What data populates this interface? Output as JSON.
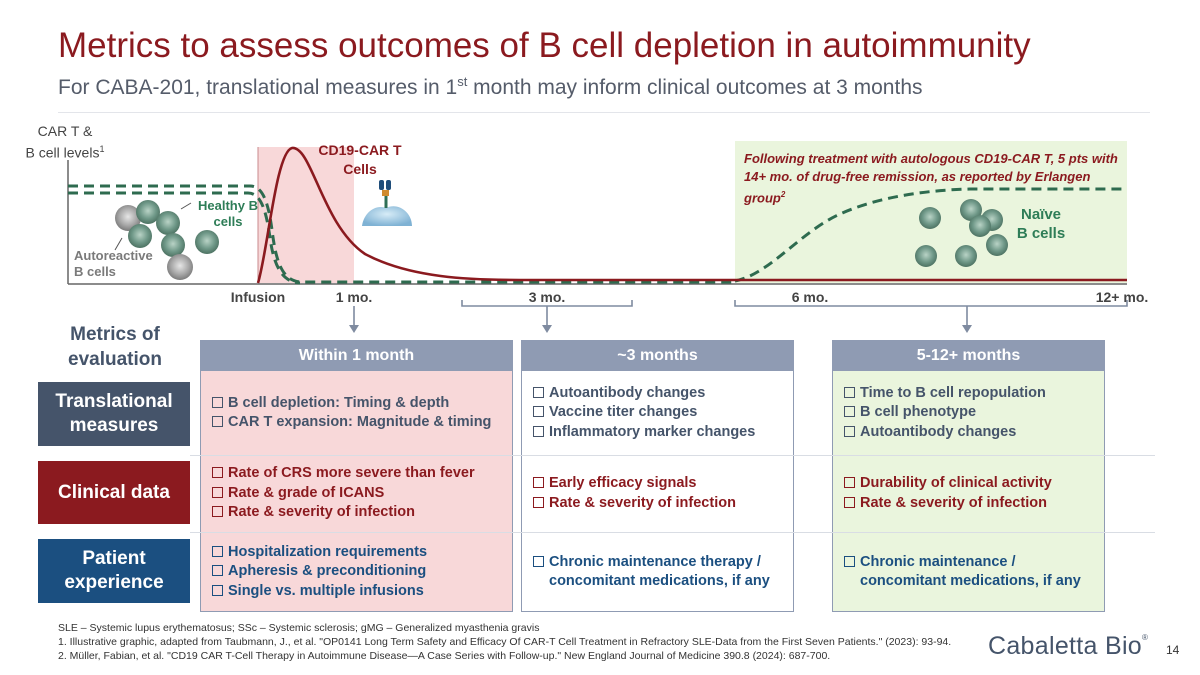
{
  "header": {
    "title": "Metrics to assess outcomes of B cell depletion in autoimmunity",
    "subtitle_pre": "For CABA-201, translational measures in 1",
    "subtitle_sup": "st",
    "subtitle_post": " month may inform clinical outcomes at 3 months"
  },
  "chart": {
    "ylabel_line1": "CAR T &",
    "ylabel_line2": "B cell levels",
    "ylabel_sup": "1",
    "cd19_line1": "CD19-CAR T",
    "cd19_line2": "Cells",
    "erlangen_note": "Following treatment with autologous CD19-CAR T, 5 pts with 14+ mo. of drug-free remission, as reported by Erlangen group",
    "erlangen_sup": "2",
    "healthy_line1": "Healthy B",
    "healthy_line2": "cells",
    "naive_line1": "Naïve",
    "naive_line2": "B cells",
    "autoreactive_line1": "Autoreactive",
    "autoreactive_line2": "B cells",
    "ticks": [
      "Infusion",
      "1 mo.",
      "3 mo.",
      "6 mo.",
      "12+ mo."
    ],
    "colors": {
      "car_t": "#8b1a1f",
      "b_cells": "#2e6b4f",
      "car_window": "#f8d8d9",
      "remission_window": "#eaf5dd"
    }
  },
  "table": {
    "metrics_line1": "Metrics of",
    "metrics_line2": "evaluation",
    "columns": [
      "Within 1 month",
      "~3 months",
      "5-12+ months"
    ],
    "rows": [
      {
        "label_line1": "Translational",
        "label_line2": "measures",
        "cells": [
          [
            "B cell depletion: Timing & depth",
            "CAR T expansion: Magnitude & timing"
          ],
          [
            "Autoantibody changes",
            "Vaccine titer changes",
            "Inflammatory marker changes"
          ],
          [
            "Time to B cell repopulation",
            "B cell phenotype",
            "Autoantibody changes"
          ]
        ]
      },
      {
        "label_line1": "Clinical data",
        "label_line2": "",
        "cells": [
          [
            "Rate of CRS more severe than fever",
            "Rate & grade of ICANS",
            "Rate & severity of infection"
          ],
          [
            "Early efficacy signals",
            "Rate & severity of infection"
          ],
          [
            "Durability of clinical activity",
            "Rate & severity of infection"
          ]
        ]
      },
      {
        "label_line1": "Patient",
        "label_line2": "experience",
        "cells": [
          [
            "Hospitalization requirements",
            "Apheresis & preconditioning",
            "Single vs. multiple infusions"
          ],
          [
            "Chronic maintenance therapy /",
            "concomitant medications, if any"
          ],
          [
            "Chronic maintenance /",
            "concomitant medications, if any"
          ]
        ]
      }
    ]
  },
  "footer": {
    "abbrev": "SLE – Systemic lupus erythematosus; SSc – Systemic sclerosis; gMG – Generalized myasthenia gravis",
    "ref1": "1. Illustrative graphic, adapted from Taubmann, J., et al. \"OP0141 Long Term Safety and Efficacy Of CAR-T Cell Treatment in Refractory SLE-Data from the First Seven Patients.\" (2023): 93-94.",
    "ref2": "2. Müller, Fabian, et al. \"CD19 CAR T-Cell Therapy in Autoimmune Disease—A Case Series with Follow-up.\" New England Journal of Medicine 390.8 (2024): 687-700.",
    "logo": "Cabaletta Bio",
    "logo_mark": "®",
    "page": "14"
  }
}
